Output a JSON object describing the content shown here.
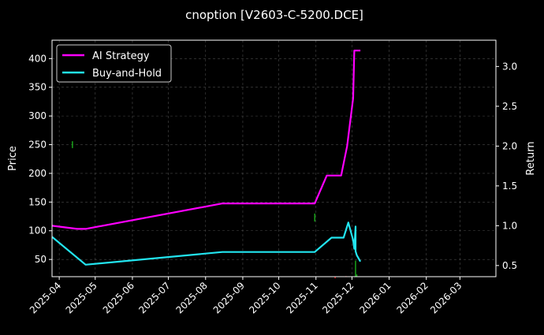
{
  "chart_data": {
    "type": "line",
    "title": "cnoption [V2603-C-5200.DCE]",
    "xlabel": "",
    "ylabel": "Price",
    "y2label": "Return",
    "x_ticks": [
      "2025-04",
      "2025-05",
      "2025-06",
      "2025-07",
      "2025-08",
      "2025-09",
      "2025-10",
      "2025-11",
      "2025-12",
      "2026-01",
      "2026-02",
      "2026-03"
    ],
    "y_ticks": [
      "50",
      "100",
      "150",
      "200",
      "250",
      "300",
      "350",
      "400"
    ],
    "y2_ticks": [
      "0.5",
      "1.0",
      "1.5",
      "2.0",
      "2.5",
      "3.0"
    ],
    "xlim": [
      "2025-03-26",
      "2026-03-31"
    ],
    "ylim": [
      20,
      432
    ],
    "y2lim": [
      0.36,
      3.33
    ],
    "grid": true,
    "legend": "top-left",
    "series": [
      {
        "name": "AI Strategy",
        "axis": "right",
        "color": "#ff00ff",
        "points": [
          [
            "2025-03-26",
            1.0
          ],
          [
            "2025-04-16",
            0.96
          ],
          [
            "2025-04-23",
            0.96
          ],
          [
            "2025-08-15",
            1.28
          ],
          [
            "2025-10-31",
            1.28
          ],
          [
            "2025-11-10",
            1.63
          ],
          [
            "2025-11-22",
            1.63
          ],
          [
            "2025-11-27",
            2.0
          ],
          [
            "2025-12-02",
            2.6
          ],
          [
            "2025-12-03",
            3.2
          ],
          [
            "2025-12-08",
            3.2
          ]
        ]
      },
      {
        "name": "Buy-and-Hold",
        "axis": "right",
        "color": "#22e5f0",
        "points": [
          [
            "2025-03-26",
            0.86
          ],
          [
            "2025-04-23",
            0.51
          ],
          [
            "2025-08-15",
            0.67
          ],
          [
            "2025-10-31",
            0.67
          ],
          [
            "2025-11-14",
            0.85
          ],
          [
            "2025-11-24",
            0.85
          ],
          [
            "2025-11-28",
            1.04
          ],
          [
            "2025-12-02",
            0.82
          ],
          [
            "2025-12-03",
            0.71
          ],
          [
            "2025-12-04",
            0.99
          ],
          [
            "2025-12-04",
            0.68
          ],
          [
            "2025-12-05",
            0.63
          ],
          [
            "2025-12-08",
            0.55
          ]
        ]
      }
    ],
    "signals": [
      {
        "date": "2025-04-12",
        "low": 244,
        "high": 256,
        "color": "#1aa31a"
      },
      {
        "date": "2025-10-31",
        "low": 116,
        "high": 130,
        "color": "#1aa31a"
      },
      {
        "date": "2025-11-17",
        "low": 15,
        "high": 17,
        "color": "#cc1111"
      },
      {
        "date": "2025-11-26",
        "low": 10,
        "high": 21,
        "color": "#cc1111"
      },
      {
        "date": "2025-12-04",
        "low": 5,
        "high": 48,
        "color": "#1aa31a"
      },
      {
        "date": "2025-12-05",
        "low": 15,
        "high": 24,
        "color": "#1aa31a"
      }
    ]
  }
}
